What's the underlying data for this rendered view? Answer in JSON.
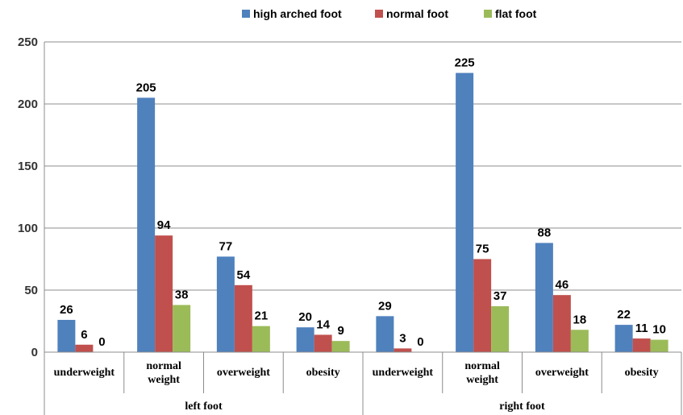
{
  "chart_data": {
    "type": "bar",
    "groups": [
      {
        "label": "left foot",
        "categories": [
          "underweight",
          "normal weight",
          "overweight",
          "obesity"
        ]
      },
      {
        "label": "right foot",
        "categories": [
          "underweight",
          "normal weight",
          "overweight",
          "obesity"
        ]
      }
    ],
    "series": [
      {
        "name": "high arched foot",
        "color": "#4F81BD",
        "values": [
          26,
          205,
          77,
          20,
          29,
          225,
          88,
          22
        ]
      },
      {
        "name": "normal foot",
        "color": "#C0504D",
        "values": [
          6,
          94,
          54,
          14,
          3,
          75,
          46,
          11
        ]
      },
      {
        "name": "flat foot",
        "color": "#9BBB59",
        "values": [
          0,
          38,
          21,
          9,
          0,
          37,
          18,
          10
        ]
      }
    ],
    "ylim": [
      0,
      250
    ],
    "yticks": [
      0,
      50,
      100,
      150,
      200,
      250
    ],
    "grid": true,
    "legend_position": "top"
  }
}
